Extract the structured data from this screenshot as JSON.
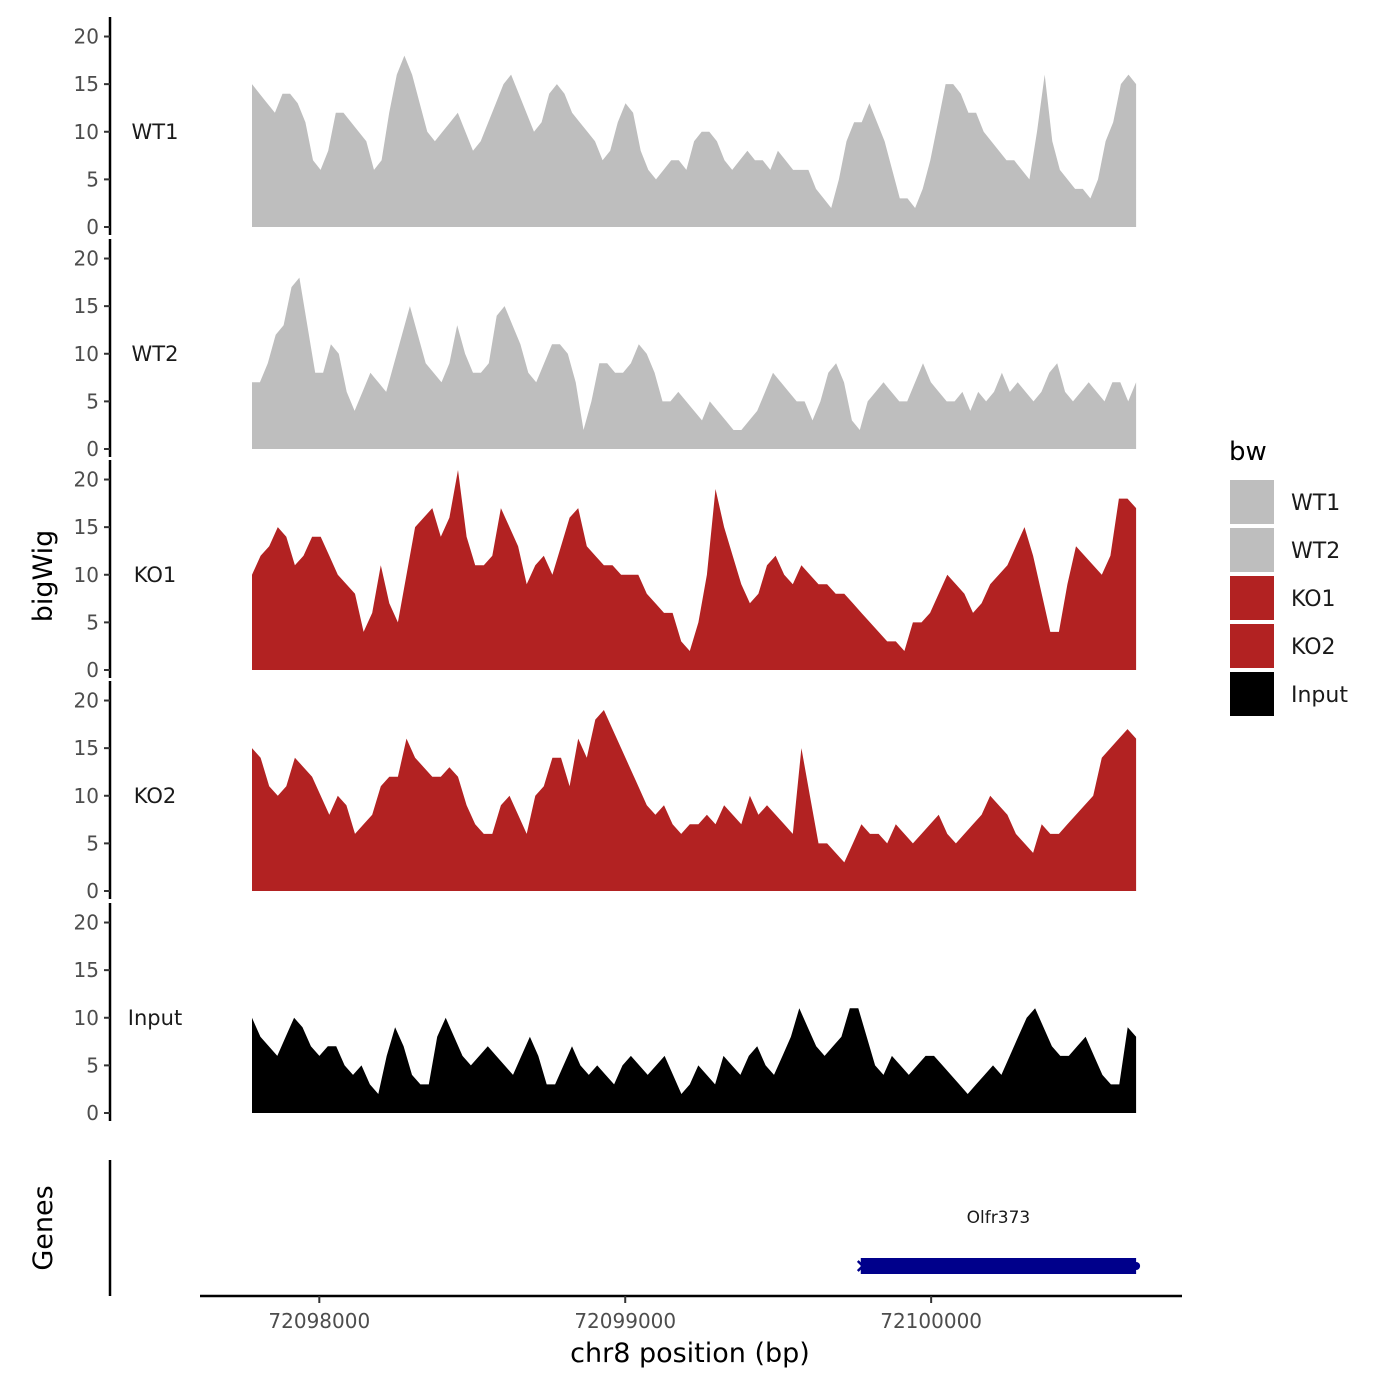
{
  "chart_data": {
    "type": "area",
    "xlabel": "chr8 position (bp)",
    "ylabel": "bigWig",
    "genes_label": "Genes",
    "x_range": [
      72097780,
      72100670
    ],
    "xlim": [
      72097610,
      72100820
    ],
    "x_ticks": [
      72098000,
      72099000,
      72100000
    ],
    "x_tick_labels": [
      "72098000",
      "72099000",
      "72100000"
    ],
    "ylim": [
      0,
      21
    ],
    "y_ticks": [
      0,
      5,
      10,
      15,
      20
    ],
    "y_tick_labels": [
      "0",
      "5",
      "10",
      "15",
      "20"
    ],
    "legend": {
      "title": "bw",
      "position": "right",
      "entries": [
        {
          "label": "WT1",
          "color": "#bebebe"
        },
        {
          "label": "WT2",
          "color": "#bebebe"
        },
        {
          "label": "KO1",
          "color": "#b22222"
        },
        {
          "label": "KO2",
          "color": "#b22222"
        },
        {
          "label": "Input",
          "color": "#000000"
        }
      ]
    },
    "series": [
      {
        "name": "WT1",
        "color": "#bebebe",
        "values": [
          15,
          14,
          13,
          12,
          14,
          14,
          13,
          11,
          7,
          6,
          8,
          12,
          12,
          11,
          10,
          9,
          6,
          7,
          12,
          16,
          18,
          16,
          13,
          10,
          9,
          10,
          11,
          12,
          10,
          8,
          9,
          11,
          13,
          15,
          16,
          14,
          12,
          10,
          11,
          14,
          15,
          14,
          12,
          11,
          10,
          9,
          7,
          8,
          11,
          13,
          12,
          8,
          6,
          5,
          6,
          7,
          7,
          6,
          9,
          10,
          10,
          9,
          7,
          6,
          7,
          8,
          7,
          7,
          6,
          8,
          7,
          6,
          6,
          6,
          4,
          3,
          2,
          5,
          9,
          11,
          11,
          13,
          11,
          9,
          6,
          3,
          3,
          2,
          4,
          7,
          11,
          15,
          15,
          14,
          12,
          12,
          10,
          9,
          8,
          7,
          7,
          6,
          5,
          10,
          16,
          9,
          6,
          5,
          4,
          4,
          3,
          5,
          9,
          11,
          15,
          16,
          15
        ]
      },
      {
        "name": "WT2",
        "color": "#bebebe",
        "values": [
          7,
          7,
          9,
          12,
          13,
          17,
          18,
          13,
          8,
          8,
          11,
          10,
          6,
          4,
          6,
          8,
          7,
          6,
          9,
          12,
          15,
          12,
          9,
          8,
          7,
          9,
          13,
          10,
          8,
          8,
          9,
          14,
          15,
          13,
          11,
          8,
          7,
          9,
          11,
          11,
          10,
          7,
          2,
          5,
          9,
          9,
          8,
          8,
          9,
          11,
          10,
          8,
          5,
          5,
          6,
          5,
          4,
          3,
          5,
          4,
          3,
          2,
          2,
          3,
          4,
          6,
          8,
          7,
          6,
          5,
          5,
          3,
          5,
          8,
          9,
          7,
          3,
          2,
          5,
          6,
          7,
          6,
          5,
          5,
          7,
          9,
          7,
          6,
          5,
          5,
          6,
          4,
          6,
          5,
          6,
          8,
          6,
          7,
          6,
          5,
          6,
          8,
          9,
          6,
          5,
          6,
          7,
          6,
          5,
          7,
          7,
          5,
          7
        ]
      },
      {
        "name": "KO1",
        "color": "#b22222",
        "values": [
          10,
          12,
          13,
          15,
          14,
          11,
          12,
          14,
          14,
          12,
          10,
          9,
          8,
          4,
          6,
          11,
          7,
          5,
          10,
          15,
          16,
          17,
          14,
          16,
          21,
          14,
          11,
          11,
          12,
          17,
          15,
          13,
          9,
          11,
          12,
          10,
          13,
          16,
          17,
          13,
          12,
          11,
          11,
          10,
          10,
          10,
          8,
          7,
          6,
          6,
          3,
          2,
          5,
          10,
          19,
          15,
          12,
          9,
          7,
          8,
          11,
          12,
          10,
          9,
          11,
          10,
          9,
          9,
          8,
          8,
          7,
          6,
          5,
          4,
          3,
          3,
          2,
          5,
          5,
          6,
          8,
          10,
          9,
          8,
          6,
          7,
          9,
          10,
          11,
          13,
          15,
          12,
          8,
          4,
          4,
          9,
          13,
          12,
          11,
          10,
          12,
          18,
          18,
          17
        ]
      },
      {
        "name": "KO2",
        "color": "#b22222",
        "values": [
          15,
          14,
          11,
          10,
          11,
          14,
          13,
          12,
          10,
          8,
          10,
          9,
          6,
          7,
          8,
          11,
          12,
          12,
          16,
          14,
          13,
          12,
          12,
          13,
          12,
          9,
          7,
          6,
          6,
          9,
          10,
          8,
          6,
          10,
          11,
          14,
          14,
          11,
          16,
          14,
          18,
          19,
          17,
          15,
          13,
          11,
          9,
          8,
          9,
          7,
          6,
          7,
          7,
          8,
          7,
          9,
          8,
          7,
          10,
          8,
          9,
          8,
          7,
          6,
          15,
          10,
          5,
          5,
          4,
          3,
          5,
          7,
          6,
          6,
          5,
          7,
          6,
          5,
          6,
          7,
          8,
          6,
          5,
          6,
          7,
          8,
          10,
          9,
          8,
          6,
          5,
          4,
          7,
          6,
          6,
          7,
          8,
          9,
          10,
          14,
          15,
          16,
          17,
          16
        ]
      },
      {
        "name": "Input",
        "color": "#000000",
        "values": [
          10,
          8,
          7,
          6,
          8,
          10,
          9,
          7,
          6,
          7,
          7,
          5,
          4,
          5,
          3,
          2,
          6,
          9,
          7,
          4,
          3,
          3,
          8,
          10,
          8,
          6,
          5,
          6,
          7,
          6,
          5,
          4,
          6,
          8,
          6,
          3,
          3,
          5,
          7,
          5,
          4,
          5,
          4,
          3,
          5,
          6,
          5,
          4,
          5,
          6,
          4,
          2,
          3,
          5,
          4,
          3,
          6,
          5,
          4,
          6,
          7,
          5,
          4,
          6,
          8,
          11,
          9,
          7,
          6,
          7,
          8,
          11,
          11,
          8,
          5,
          4,
          6,
          5,
          4,
          5,
          6,
          6,
          5,
          4,
          3,
          2,
          3,
          4,
          5,
          4,
          6,
          8,
          10,
          11,
          9,
          7,
          6,
          6,
          7,
          8,
          6,
          4,
          3,
          3,
          9,
          8
        ]
      }
    ],
    "genes": [
      {
        "name": "Olfr373",
        "start": 72099770,
        "end": 72100670,
        "strand": "-",
        "color": "#00008b"
      }
    ]
  }
}
